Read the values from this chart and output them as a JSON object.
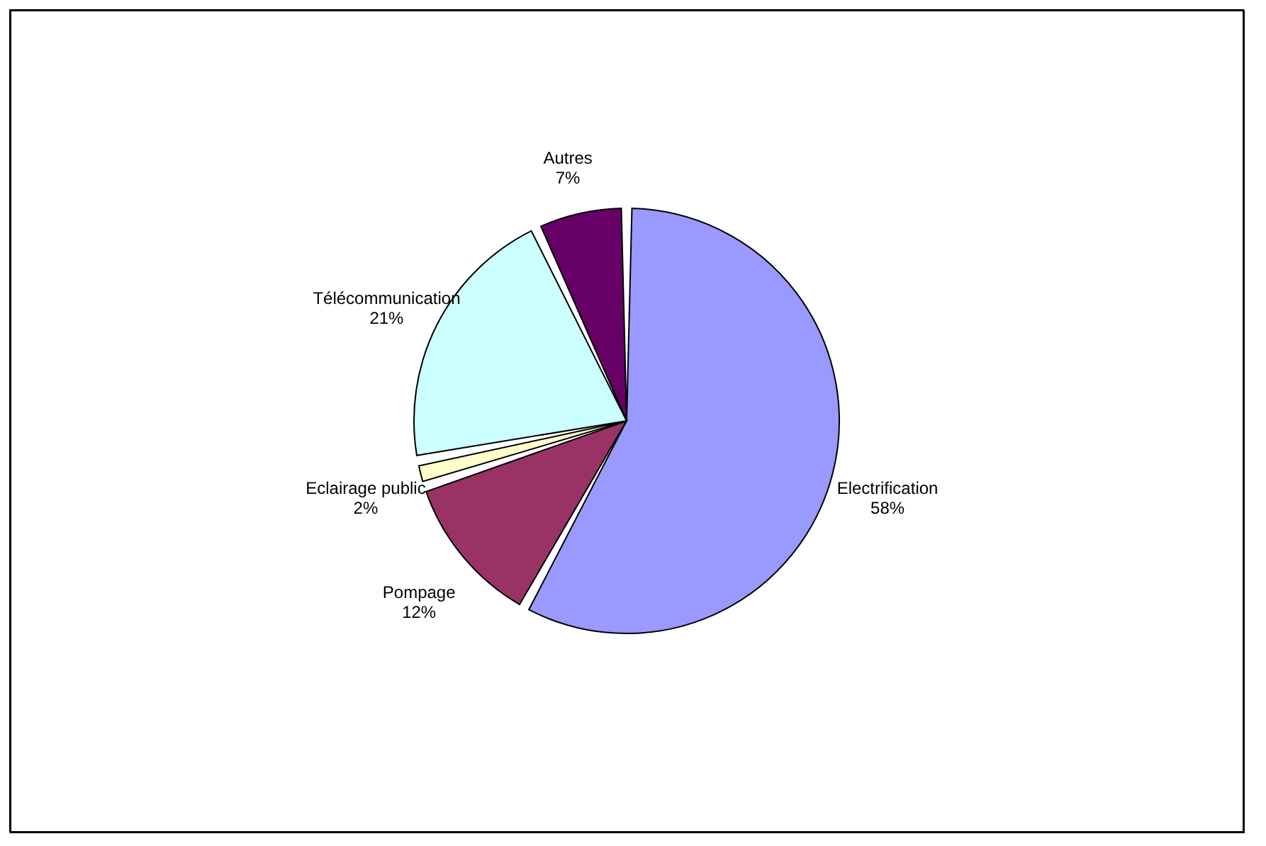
{
  "chart_data": {
    "type": "pie",
    "categories": [
      "Electrification",
      "Pompage",
      "Eclairage public",
      "Télécommunication",
      "Autres"
    ],
    "values": [
      58,
      12,
      2,
      21,
      7
    ],
    "colors": [
      "#9999ff",
      "#993366",
      "#ffffcc",
      "#ccffff",
      "#660066"
    ],
    "value_labels": [
      "58%",
      "12%",
      "2%",
      "21%",
      "7%"
    ],
    "legend": false
  }
}
